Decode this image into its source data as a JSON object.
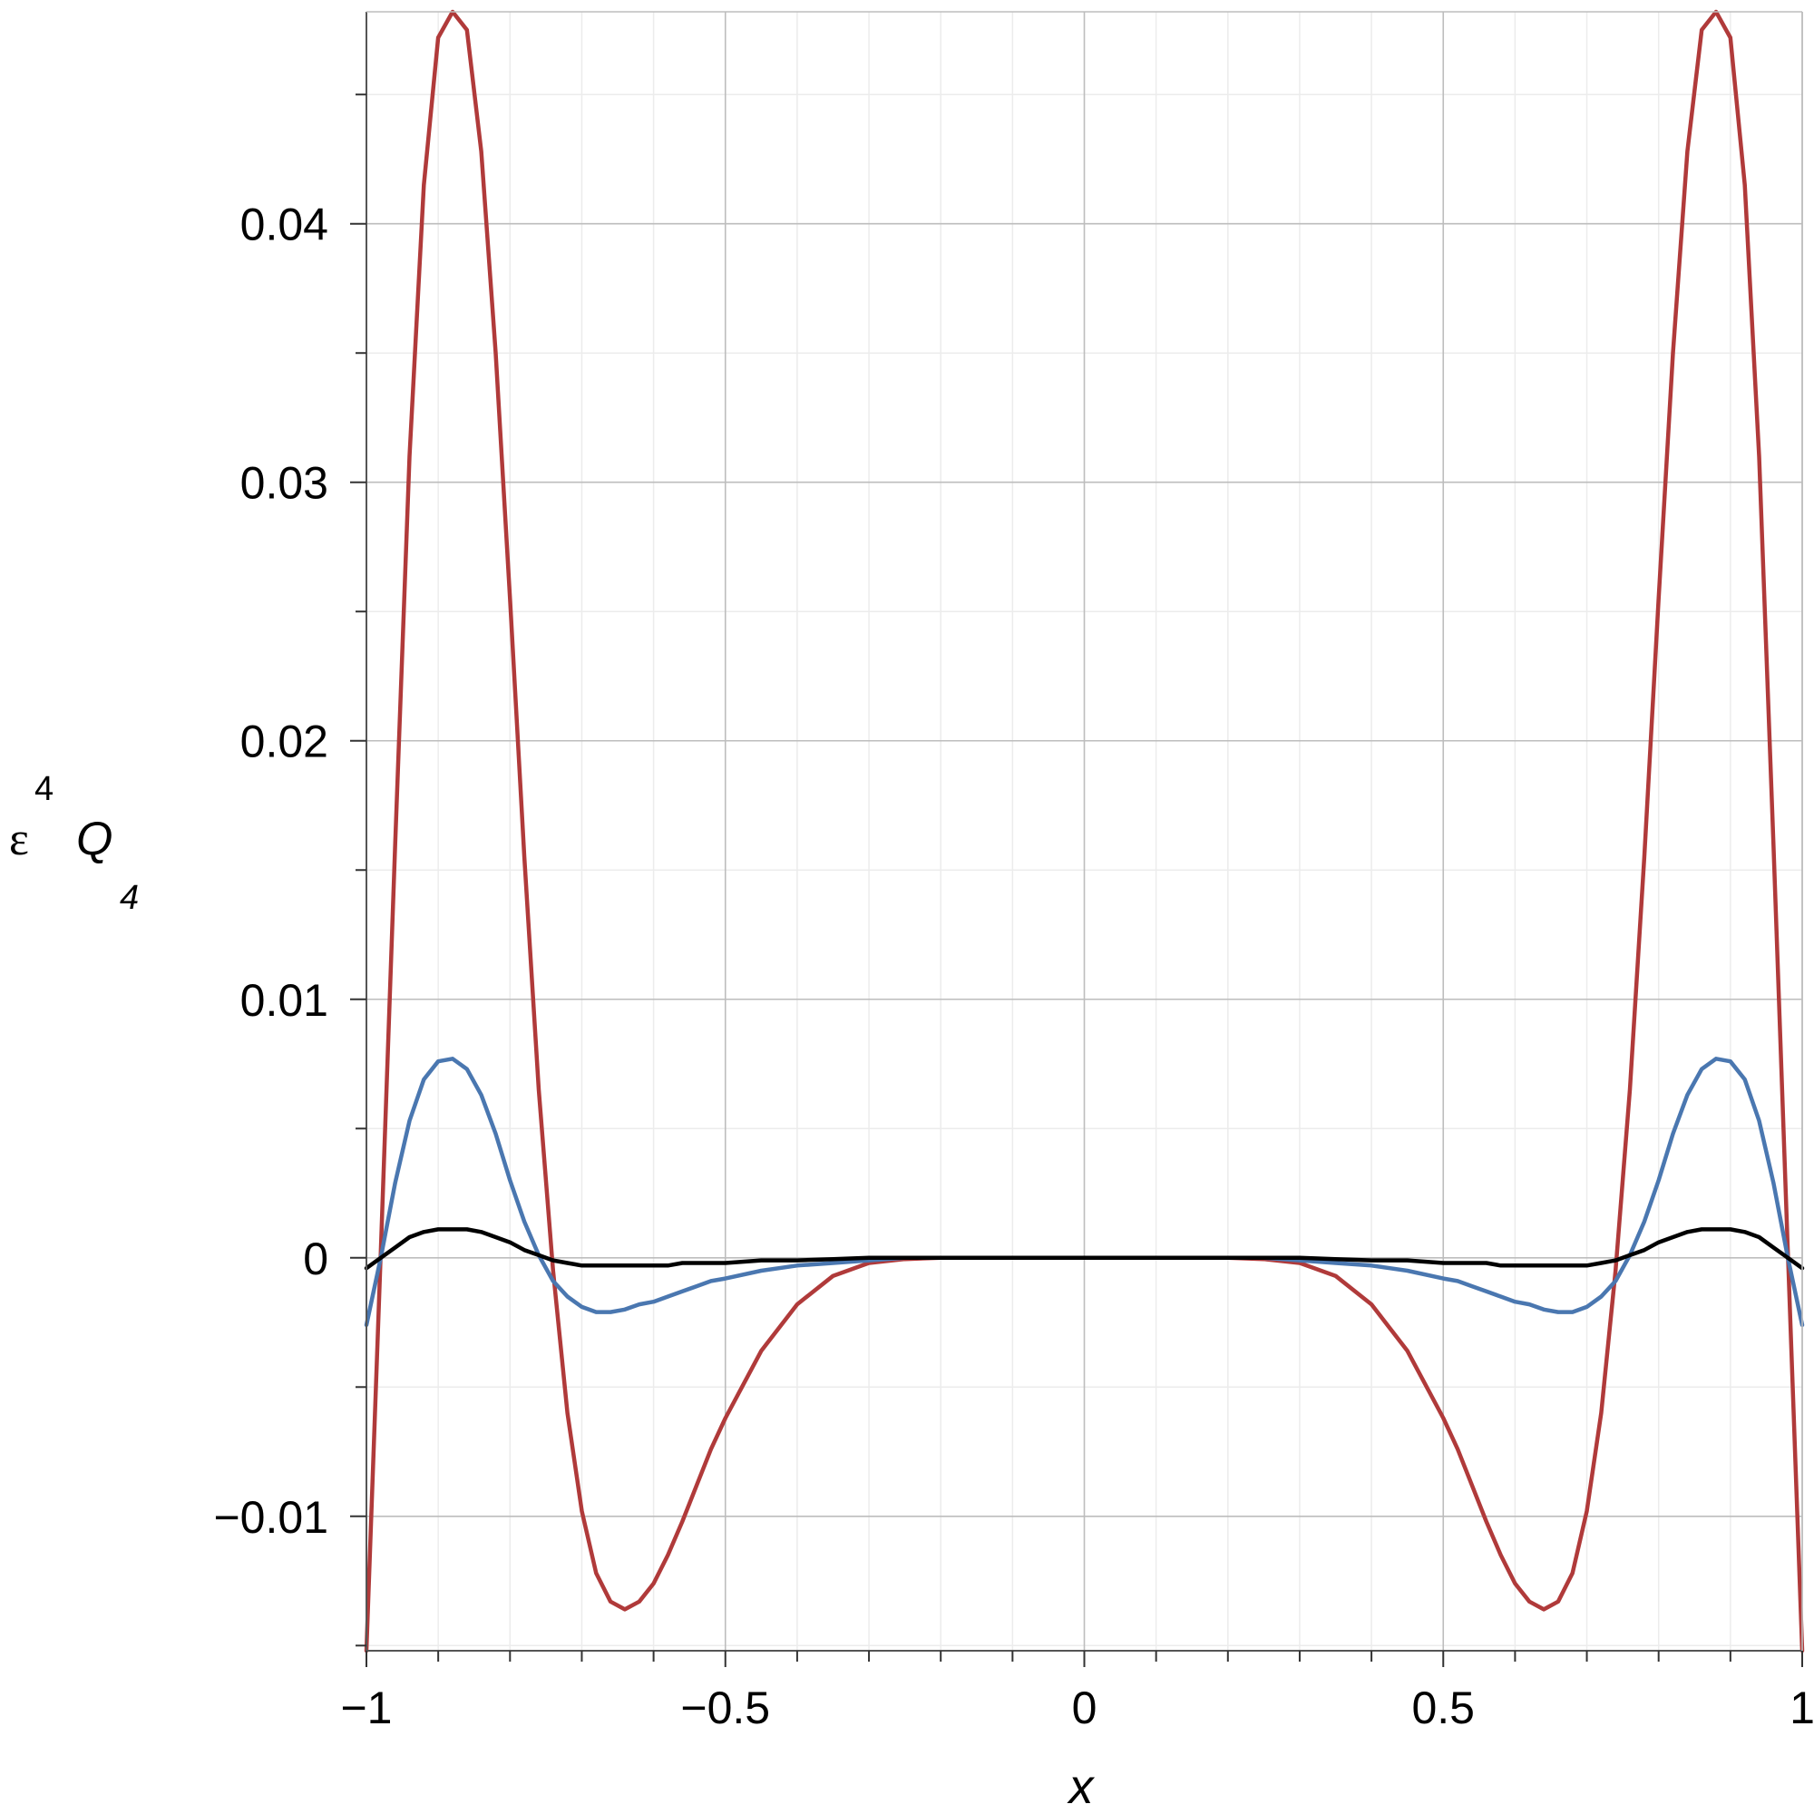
{
  "chart_data": {
    "type": "line",
    "title": "",
    "xlabel": "x",
    "ylabel": {
      "base": "ε",
      "superscript": "4",
      "symbol": "Q",
      "subscript": "4"
    },
    "xlim": [
      -1,
      1
    ],
    "ylim": [
      -0.0152,
      0.0482
    ],
    "grid": true,
    "x_ticks": [
      -1,
      -0.5,
      0,
      0.5,
      1
    ],
    "x_tick_labels": [
      "−1",
      "−0.5",
      "0",
      "0.5",
      "1"
    ],
    "y_ticks": [
      -0.01,
      0,
      0.01,
      0.02,
      0.03,
      0.04
    ],
    "y_tick_labels": [
      "−0.01",
      "0",
      "0.01",
      "0.02",
      "0.03",
      "0.04"
    ],
    "series": [
      {
        "color": "#b03a3a",
        "x": [
          -1,
          -0.98,
          -0.96,
          -0.94,
          -0.92,
          -0.9,
          -0.88,
          -0.86,
          -0.84,
          -0.82,
          -0.8,
          -0.78,
          -0.76,
          -0.74,
          -0.72,
          -0.7,
          -0.68,
          -0.66,
          -0.64,
          -0.62,
          -0.6,
          -0.58,
          -0.56,
          -0.54,
          -0.52,
          -0.5,
          -0.45,
          -0.4,
          -0.35,
          -0.3,
          -0.25,
          -0.2,
          -0.15,
          -0.1,
          -0.05,
          0,
          0.05,
          0.1,
          0.15,
          0.2,
          0.25,
          0.3,
          0.35,
          0.4,
          0.45,
          0.5,
          0.52,
          0.54,
          0.56,
          0.58,
          0.6,
          0.62,
          0.64,
          0.66,
          0.68,
          0.7,
          0.72,
          0.74,
          0.76,
          0.78,
          0.8,
          0.82,
          0.84,
          0.86,
          0.88,
          0.9,
          0.92,
          0.94,
          0.96,
          0.98,
          1
        ],
        "y": [
          -0.0152,
          0.0002,
          0.016,
          0.031,
          0.0415,
          0.0472,
          0.0482,
          0.0475,
          0.0428,
          0.035,
          0.0255,
          0.0155,
          0.0065,
          -0.0005,
          -0.006,
          -0.0098,
          -0.0122,
          -0.0133,
          -0.0136,
          -0.0133,
          -0.0126,
          -0.0115,
          -0.0102,
          -0.0088,
          -0.0074,
          -0.0062,
          -0.0036,
          -0.0018,
          -0.0007,
          -0.0002,
          -5e-05,
          0,
          0,
          0,
          0,
          0,
          0,
          0,
          0,
          0,
          -5e-05,
          -0.0002,
          -0.0007,
          -0.0018,
          -0.0036,
          -0.0062,
          -0.0074,
          -0.0088,
          -0.0102,
          -0.0115,
          -0.0126,
          -0.0133,
          -0.0136,
          -0.0133,
          -0.0122,
          -0.0098,
          -0.006,
          -0.0005,
          0.0065,
          0.0155,
          0.0255,
          0.035,
          0.0428,
          0.0475,
          0.0482,
          0.0472,
          0.0415,
          0.031,
          0.016,
          0.0002,
          -0.0152
        ]
      },
      {
        "color": "#4a77b0",
        "x": [
          -1,
          -0.98,
          -0.96,
          -0.94,
          -0.92,
          -0.9,
          -0.88,
          -0.86,
          -0.84,
          -0.82,
          -0.8,
          -0.78,
          -0.76,
          -0.74,
          -0.72,
          -0.7,
          -0.68,
          -0.66,
          -0.64,
          -0.62,
          -0.6,
          -0.58,
          -0.56,
          -0.54,
          -0.52,
          -0.5,
          -0.45,
          -0.4,
          -0.35,
          -0.3,
          -0.25,
          -0.2,
          -0.15,
          -0.1,
          -0.05,
          0,
          0.05,
          0.1,
          0.15,
          0.2,
          0.25,
          0.3,
          0.35,
          0.4,
          0.45,
          0.5,
          0.52,
          0.54,
          0.56,
          0.58,
          0.6,
          0.62,
          0.64,
          0.66,
          0.68,
          0.7,
          0.72,
          0.74,
          0.76,
          0.78,
          0.8,
          0.82,
          0.84,
          0.86,
          0.88,
          0.9,
          0.92,
          0.94,
          0.96,
          0.98,
          1
        ],
        "y": [
          -0.0026,
          0,
          0.0029,
          0.0053,
          0.0069,
          0.0076,
          0.0077,
          0.0073,
          0.0063,
          0.0048,
          0.003,
          0.0014,
          0.0001,
          -0.0009,
          -0.0015,
          -0.0019,
          -0.0021,
          -0.0021,
          -0.002,
          -0.0018,
          -0.0017,
          -0.0015,
          -0.0013,
          -0.0011,
          -0.0009,
          -0.0008,
          -0.0005,
          -0.0003,
          -0.0002,
          -0.0001,
          0,
          0,
          0,
          0,
          0,
          0,
          0,
          0,
          0,
          0,
          0,
          -0.0001,
          -0.0002,
          -0.0003,
          -0.0005,
          -0.0008,
          -0.0009,
          -0.0011,
          -0.0013,
          -0.0015,
          -0.0017,
          -0.0018,
          -0.002,
          -0.0021,
          -0.0021,
          -0.0019,
          -0.0015,
          -0.0009,
          0.0001,
          0.0014,
          0.003,
          0.0048,
          0.0063,
          0.0073,
          0.0077,
          0.0076,
          0.0069,
          0.0053,
          0.0029,
          0,
          -0.0026
        ]
      },
      {
        "color": "#000000",
        "x": [
          -1,
          -0.98,
          -0.96,
          -0.94,
          -0.92,
          -0.9,
          -0.88,
          -0.86,
          -0.84,
          -0.82,
          -0.8,
          -0.78,
          -0.76,
          -0.74,
          -0.72,
          -0.7,
          -0.68,
          -0.66,
          -0.64,
          -0.62,
          -0.6,
          -0.58,
          -0.56,
          -0.54,
          -0.52,
          -0.5,
          -0.45,
          -0.4,
          -0.35,
          -0.3,
          -0.25,
          -0.2,
          -0.15,
          -0.1,
          -0.05,
          0,
          0.05,
          0.1,
          0.15,
          0.2,
          0.25,
          0.3,
          0.35,
          0.4,
          0.45,
          0.5,
          0.52,
          0.54,
          0.56,
          0.58,
          0.6,
          0.62,
          0.64,
          0.66,
          0.68,
          0.7,
          0.72,
          0.74,
          0.76,
          0.78,
          0.8,
          0.82,
          0.84,
          0.86,
          0.88,
          0.9,
          0.92,
          0.94,
          0.96,
          0.98,
          1
        ],
        "y": [
          -0.0004,
          0,
          0.0004,
          0.0008,
          0.001,
          0.0011,
          0.0011,
          0.0011,
          0.001,
          0.0008,
          0.0006,
          0.0003,
          0.0001,
          -0.0001,
          -0.0002,
          -0.0003,
          -0.0003,
          -0.0003,
          -0.0003,
          -0.0003,
          -0.0003,
          -0.0003,
          -0.0002,
          -0.0002,
          -0.0002,
          -0.0002,
          -0.0001,
          -0.0001,
          -5e-05,
          0,
          0,
          0,
          0,
          0,
          0,
          0,
          0,
          0,
          0,
          0,
          0,
          0,
          -5e-05,
          -0.0001,
          -0.0001,
          -0.0002,
          -0.0002,
          -0.0002,
          -0.0002,
          -0.0003,
          -0.0003,
          -0.0003,
          -0.0003,
          -0.0003,
          -0.0003,
          -0.0003,
          -0.0002,
          -0.0001,
          0.0001,
          0.0003,
          0.0006,
          0.0008,
          0.001,
          0.0011,
          0.0011,
          0.0011,
          0.001,
          0.0008,
          0.0004,
          0,
          -0.0004
        ]
      }
    ]
  }
}
